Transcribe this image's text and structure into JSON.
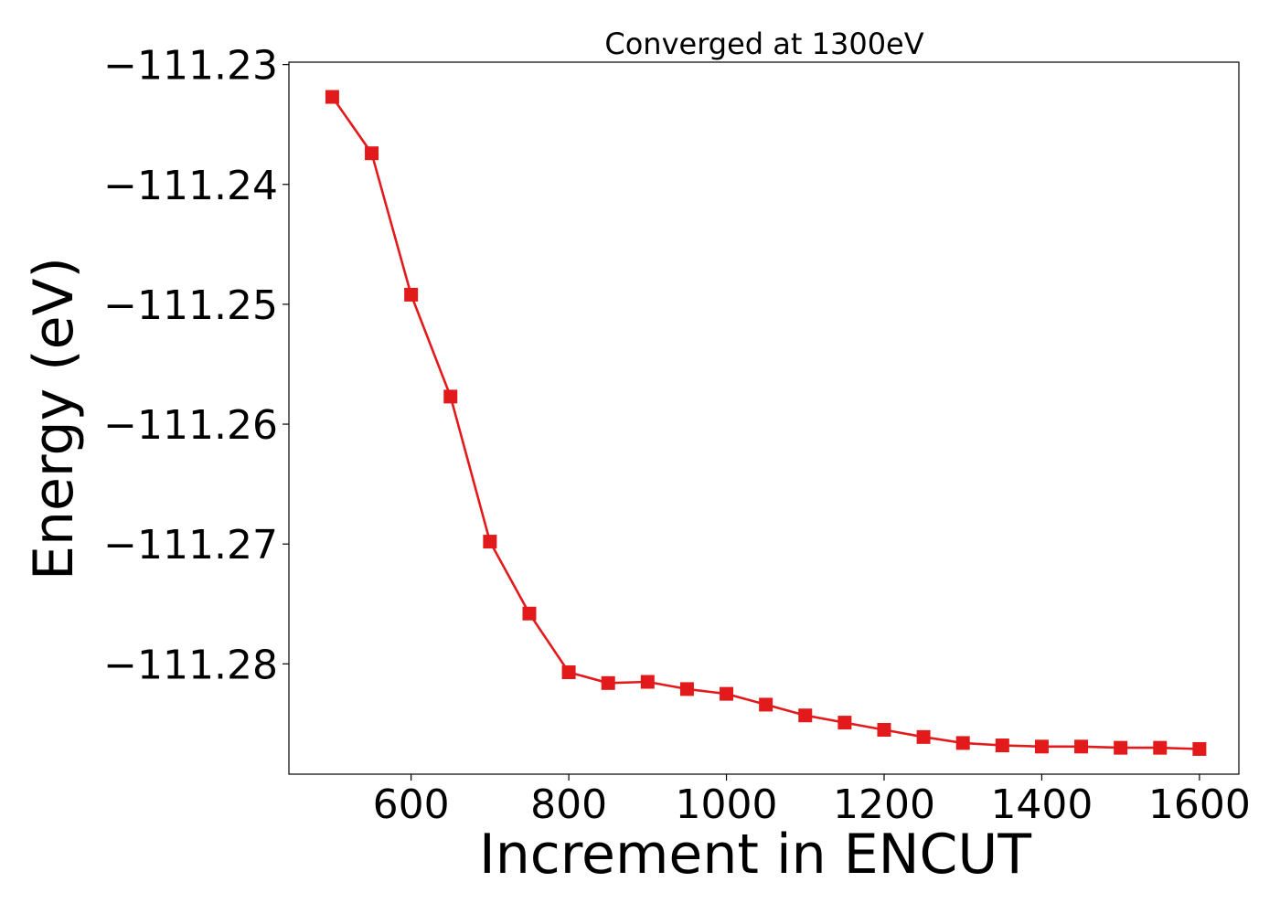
{
  "chart_data": {
    "type": "line",
    "title": "Converged at 1300eV",
    "xlabel": "Increment in ENCUT",
    "ylabel": "Energy (eV)",
    "xlim": [
      445,
      1650
    ],
    "ylim": [
      -111.2892,
      -111.2298
    ],
    "x_ticks": [
      600,
      800,
      1000,
      1200,
      1400,
      1600
    ],
    "x_tick_labels": [
      "600",
      "800",
      "1000",
      "1200",
      "1400",
      "1600"
    ],
    "y_ticks": [
      -111.23,
      -111.24,
      -111.25,
      -111.26,
      -111.27,
      -111.28
    ],
    "y_tick_labels": [
      "−111.23",
      "−111.24",
      "−111.25",
      "−111.26",
      "−111.27",
      "−111.28"
    ],
    "grid": false,
    "series": [
      {
        "color": "#e31a1c",
        "marker": "square",
        "x": [
          500,
          550,
          600,
          650,
          700,
          750,
          800,
          850,
          900,
          950,
          1000,
          1050,
          1100,
          1150,
          1200,
          1250,
          1300,
          1350,
          1400,
          1450,
          1500,
          1550,
          1600
        ],
        "y": [
          -111.2327,
          -111.2374,
          -111.2492,
          -111.2577,
          -111.2698,
          -111.2758,
          -111.2807,
          -111.2816,
          -111.2815,
          -111.2821,
          -111.2825,
          -111.2834,
          -111.2843,
          -111.2849,
          -111.2855,
          -111.2861,
          -111.2866,
          -111.2868,
          -111.2869,
          -111.2869,
          -111.287,
          -111.287,
          -111.2871
        ]
      }
    ]
  }
}
